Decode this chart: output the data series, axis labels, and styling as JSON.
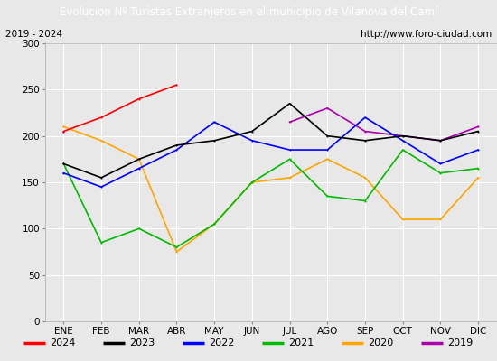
{
  "title": "Evolucion Nº Turistas Extranjeros en el municipio de Vilanova del Camí",
  "subtitle_left": "2019 - 2024",
  "subtitle_right": "http://www.foro-ciudad.com",
  "xlabel_months": [
    "ENE",
    "FEB",
    "MAR",
    "ABR",
    "MAY",
    "JUN",
    "JUL",
    "AGO",
    "SEP",
    "OCT",
    "NOV",
    "DIC"
  ],
  "ylim": [
    0,
    300
  ],
  "yticks": [
    0,
    50,
    100,
    150,
    200,
    250,
    300
  ],
  "series": {
    "2024": {
      "color": "#ff0000",
      "values": [
        205,
        220,
        240,
        255,
        null,
        null,
        null,
        null,
        null,
        null,
        null,
        null
      ]
    },
    "2023": {
      "color": "#000000",
      "values": [
        170,
        155,
        175,
        190,
        195,
        205,
        235,
        200,
        195,
        200,
        195,
        205
      ]
    },
    "2022": {
      "color": "#0000ff",
      "values": [
        160,
        145,
        165,
        185,
        215,
        195,
        185,
        185,
        220,
        195,
        170,
        185
      ]
    },
    "2021": {
      "color": "#00bb00",
      "values": [
        170,
        85,
        100,
        80,
        105,
        150,
        175,
        135,
        130,
        185,
        160,
        165
      ]
    },
    "2020": {
      "color": "#ffa500",
      "values": [
        210,
        195,
        175,
        75,
        105,
        150,
        155,
        175,
        155,
        110,
        110,
        155
      ]
    },
    "2019": {
      "color": "#aa00aa",
      "values": [
        205,
        null,
        null,
        null,
        null,
        null,
        215,
        230,
        205,
        200,
        195,
        210
      ]
    }
  },
  "bg_color": "#e8e8e8",
  "plot_bg_color": "#e8e8e8",
  "title_bg_color": "#4a86c8",
  "title_text_color": "#ffffff",
  "grid_color": "#ffffff",
  "figsize": [
    5.5,
    4.0
  ],
  "dpi": 100
}
